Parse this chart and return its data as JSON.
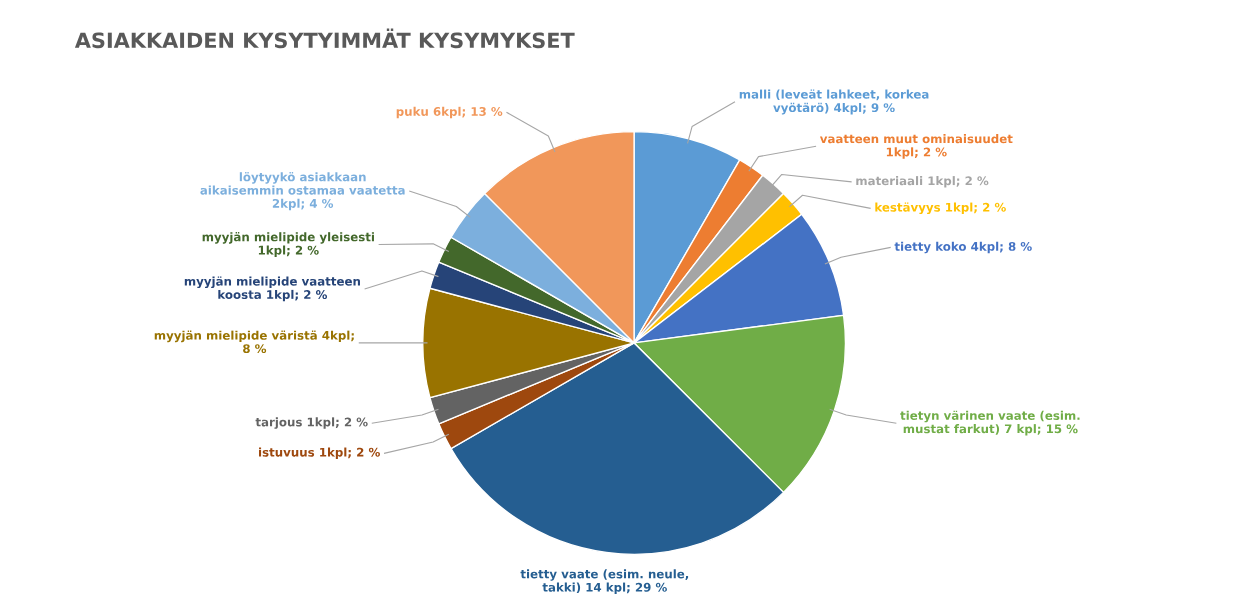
{
  "chart_data": {
    "type": "pie",
    "title": "ASIAKKAIDEN KYSYTYIMMÄT KYSYMYKSET",
    "categories": [
      "malli (leveät lahkeet, korkea\nvyötärö) 4kpl; 9 %",
      "vaatteen muut ominaisuudet\n1kpl; 2 %",
      "materiaali 1kpl; 2 %",
      "kestävyys 1kpl; 2 %",
      "tietty koko 4kpl; 8 %",
      "tietyn värinen vaate (esim.\nmustat farkut) 7 kpl; 15 %",
      "tietty vaate (esim. neule,\ntakki) 14 kpl; 29 %",
      "istuvuus 1kpl; 2 %",
      "tarjous 1kpl; 2 %",
      "myyjän mielipide väristä 4kpl;\n8 %",
      "myyjän mielipide vaatteen\nkoosta 1kpl; 2 %",
      "myyjän mielipide yleisesti\n1kpl; 2 %",
      "löytyykö asiakkaan\naikaisemmin ostamaa vaatetta\n2kpl; 4 %",
      "puku 6kpl; 13 %"
    ],
    "values": [
      4,
      1,
      1,
      1,
      4,
      7,
      14,
      1,
      1,
      4,
      1,
      1,
      2,
      6
    ],
    "colors": [
      "#5b9bd5",
      "#ed7d31",
      "#a5a5a5",
      "#ffc000",
      "#4472c4",
      "#70ad47",
      "#255e91",
      "#9e480e",
      "#636363",
      "#997300",
      "#264478",
      "#43682b",
      "#7cafdd",
      "#f1975a"
    ]
  }
}
